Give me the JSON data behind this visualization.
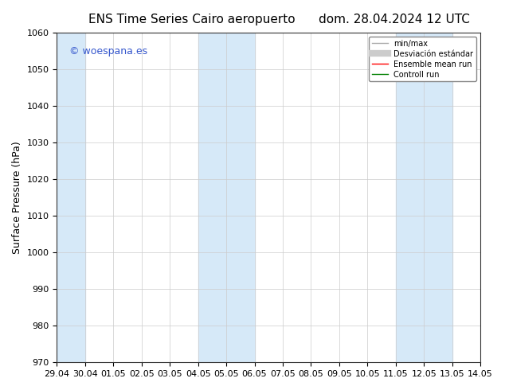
{
  "title_left": "ENS Time Series Cairo aeropuerto",
  "title_right": "dom. 28.04.2024 12 UTC",
  "ylabel": "Surface Pressure (hPa)",
  "ylim": [
    970,
    1060
  ],
  "yticks": [
    970,
    980,
    990,
    1000,
    1010,
    1020,
    1030,
    1040,
    1050,
    1060
  ],
  "x_start": "2024-04-29",
  "x_end": "2024-05-14",
  "xtick_labels": [
    "29.04",
    "30.04",
    "01.05",
    "02.05",
    "03.05",
    "04.05",
    "05.05",
    "06.05",
    "07.05",
    "08.05",
    "09.05",
    "10.05",
    "11.05",
    "12.05",
    "13.05",
    "14.05"
  ],
  "shaded_bands": [
    {
      "start": "2024-04-29",
      "end": "2024-04-30"
    },
    {
      "start": "2024-05-04",
      "end": "2024-05-06"
    },
    {
      "start": "2024-05-11",
      "end": "2024-05-13"
    }
  ],
  "band_color": "#d6e9f8",
  "background_color": "#ffffff",
  "watermark_text": "© woespana.es",
  "watermark_color": "#3355cc",
  "legend_entries": [
    {
      "label": "min/max",
      "color": "#aaaaaa",
      "lw": 1,
      "style": "solid"
    },
    {
      "label": "Desviación estándar",
      "color": "#cccccc",
      "lw": 6,
      "style": "solid"
    },
    {
      "label": "Ensemble mean run",
      "color": "#ff0000",
      "lw": 1,
      "style": "solid"
    },
    {
      "label": "Controll run",
      "color": "#008000",
      "lw": 1,
      "style": "solid"
    }
  ],
  "title_fontsize": 11,
  "axis_fontsize": 9,
  "tick_fontsize": 8
}
